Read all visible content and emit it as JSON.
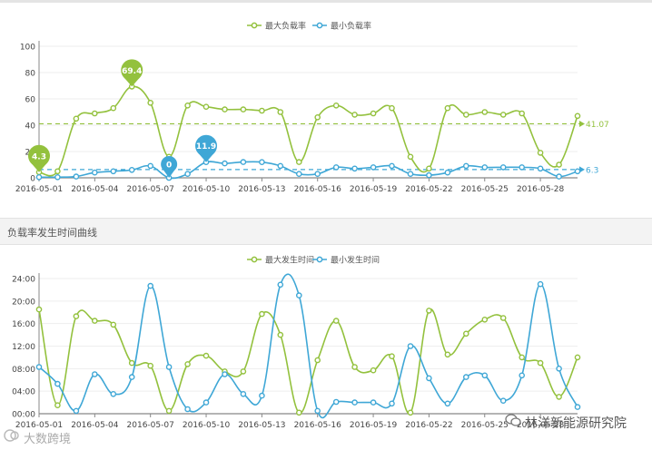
{
  "section_title": "负载率发生时间曲线",
  "watermark_left": "大数跨境",
  "watermark_right": "林洋新能源研究院",
  "colors": {
    "max": "#93c13d",
    "min": "#3fa7d6",
    "axis": "#888888",
    "grid": "#eeeeee"
  },
  "chart_data": [
    {
      "type": "line",
      "legend": [
        "最大负载率",
        "最小负载率"
      ],
      "legend_position": "top-center",
      "x": [
        "2016-05-01",
        "2016-05-02",
        "2016-05-03",
        "2016-05-04",
        "2016-05-05",
        "2016-05-06",
        "2016-05-07",
        "2016-05-08",
        "2016-05-09",
        "2016-05-10",
        "2016-05-11",
        "2016-05-12",
        "2016-05-13",
        "2016-05-14",
        "2016-05-15",
        "2016-05-16",
        "2016-05-17",
        "2016-05-18",
        "2016-05-19",
        "2016-05-20",
        "2016-05-21",
        "2016-05-22",
        "2016-05-23",
        "2016-05-24",
        "2016-05-25",
        "2016-05-26",
        "2016-05-27",
        "2016-05-28",
        "2016-05-29",
        "2016-05-30"
      ],
      "x_tick_labels": [
        "2016-05-01",
        "2016-05-04",
        "2016-05-07",
        "2016-05-10",
        "2016-05-13",
        "2016-05-16",
        "2016-05-19",
        "2016-05-22",
        "2016-05-25",
        "2016-05-28"
      ],
      "ylim": [
        0,
        100
      ],
      "y_ticks": [
        "0",
        "20",
        "40",
        "60",
        "80",
        "100"
      ],
      "series": [
        {
          "name": "最大负载率",
          "values": [
            4.3,
            5,
            45,
            49,
            53,
            69.4,
            57,
            16,
            55,
            54,
            52,
            52,
            51,
            50,
            12,
            46,
            55,
            48,
            49,
            53,
            16,
            7,
            53,
            48,
            50,
            48,
            49,
            19,
            10,
            47
          ]
        },
        {
          "name": "最小负载率",
          "values": [
            0.5,
            0.5,
            1,
            4,
            5,
            6,
            9,
            0,
            3,
            11.9,
            11,
            12,
            11.9,
            9,
            3,
            3,
            8,
            7,
            8,
            9,
            3,
            2,
            4,
            9,
            8,
            8,
            8,
            7,
            1,
            5
          ]
        }
      ],
      "reference_lines": [
        {
          "series": "最大负载率",
          "value": 41.07,
          "label": "41.07"
        },
        {
          "series": "最小负载率",
          "value": 6.3,
          "label": "6.3"
        }
      ],
      "markers": [
        {
          "series": "最大负载率",
          "x": "2016-05-01",
          "value": 4.3,
          "label": "4.3"
        },
        {
          "series": "最大负载率",
          "x": "2016-05-06",
          "value": 69.4,
          "label": "69.4"
        },
        {
          "series": "最小负载率",
          "x": "2016-05-08",
          "value": 0,
          "label": "0"
        },
        {
          "series": "最小负载率",
          "x": "2016-05-10",
          "value": 11.9,
          "label": "11.9"
        }
      ]
    },
    {
      "type": "line",
      "legend": [
        "最大发生时间",
        "最小发生时间"
      ],
      "legend_position": "top-center",
      "x": [
        "2016-05-01",
        "2016-05-02",
        "2016-05-03",
        "2016-05-04",
        "2016-05-05",
        "2016-05-06",
        "2016-05-07",
        "2016-05-08",
        "2016-05-09",
        "2016-05-10",
        "2016-05-11",
        "2016-05-12",
        "2016-05-13",
        "2016-05-14",
        "2016-05-15",
        "2016-05-16",
        "2016-05-17",
        "2016-05-18",
        "2016-05-19",
        "2016-05-20",
        "2016-05-21",
        "2016-05-22",
        "2016-05-23",
        "2016-05-24",
        "2016-05-25",
        "2016-05-26",
        "2016-05-27",
        "2016-05-28",
        "2016-05-29",
        "2016-05-30"
      ],
      "x_tick_labels": [
        "2016-05-01",
        "2016-05-04",
        "2016-05-07",
        "2016-05-10",
        "2016-05-13",
        "2016-05-16",
        "2016-05-19",
        "2016-05-22",
        "2016-05-25",
        "2016-05-28"
      ],
      "y_unit": "hours",
      "ylim": [
        0,
        24
      ],
      "y_ticks": [
        "00:00",
        "04:00",
        "08:00",
        "12:00",
        "16:00",
        "20:00",
        "24:00"
      ],
      "series": [
        {
          "name": "最大发生时间",
          "values": [
            18.5,
            1.5,
            17.3,
            16.5,
            15.8,
            9,
            8.5,
            0.5,
            8.8,
            10.3,
            7.5,
            7.5,
            17.7,
            14,
            0.2,
            9.5,
            16.5,
            8.3,
            7.7,
            10.2,
            0.2,
            18.3,
            10.5,
            14.2,
            16.7,
            17,
            10,
            9,
            3,
            10
          ]
        },
        {
          "name": "最小发生时间",
          "values": [
            8.3,
            5.3,
            0.5,
            7,
            3.5,
            6.5,
            22.7,
            8.3,
            0.8,
            2,
            7,
            3.5,
            3.2,
            22.9,
            21,
            0.5,
            2.1,
            2,
            2,
            1.8,
            12,
            6.3,
            1.8,
            6.5,
            6.8,
            2.3,
            6.8,
            23,
            8,
            1.2
          ]
        }
      ]
    }
  ]
}
